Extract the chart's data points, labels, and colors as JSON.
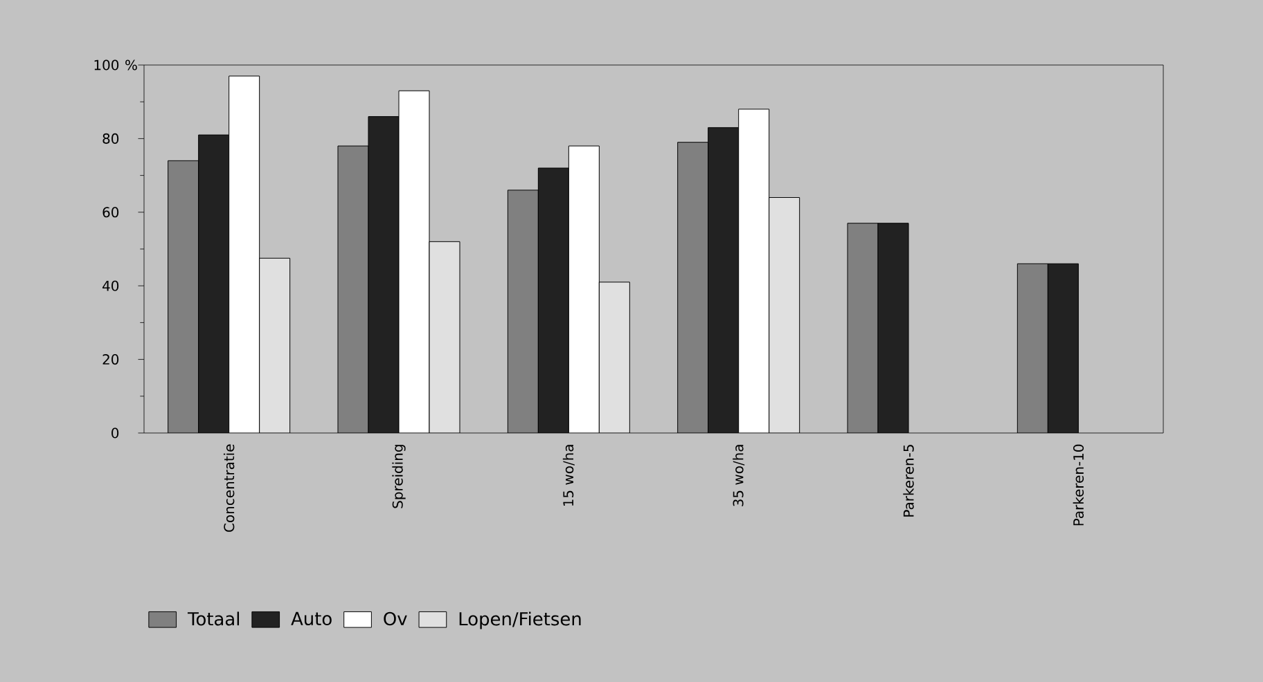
{
  "chart_data": {
    "type": "bar",
    "ylabel": "%",
    "categories": [
      "Concentratie",
      "Spreiding",
      "15 wo/ha",
      "35 wo/ha",
      "Parkeren-5",
      "Parkeren-10"
    ],
    "series": [
      {
        "name": "Totaal",
        "color": "#808080",
        "values": [
          74,
          78,
          66,
          79,
          57,
          46
        ]
      },
      {
        "name": "Auto",
        "color": "#222222",
        "values": [
          81,
          86,
          72,
          83,
          57,
          46
        ]
      },
      {
        "name": "Ov",
        "color": "#ffffff",
        "values": [
          97,
          93,
          78,
          88,
          null,
          null
        ]
      },
      {
        "name": "Lopen/Fietsen",
        "color": "#e0e0e0",
        "values": [
          47.5,
          52,
          41,
          64,
          null,
          null
        ]
      }
    ],
    "ylim": [
      0,
      100
    ],
    "yticks": [
      0,
      20,
      40,
      60,
      80,
      100
    ],
    "grid": false,
    "legend": "bottom"
  }
}
